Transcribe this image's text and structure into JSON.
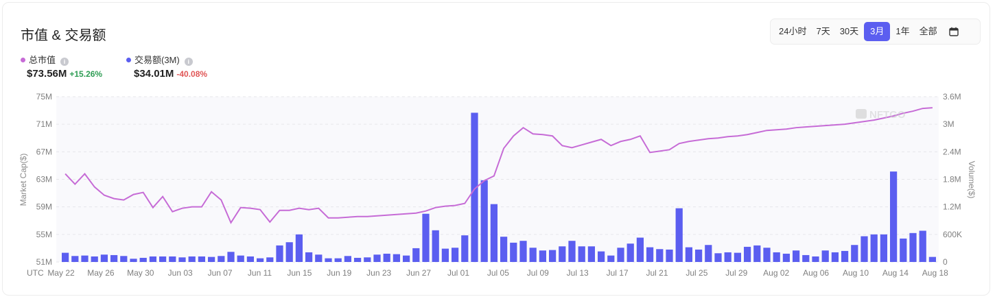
{
  "header": {
    "title": "市值 & 交易额"
  },
  "legend": {
    "market_cap": {
      "label": "总市值",
      "value": "$73.56M",
      "change": "+15.26%",
      "color": "#c66bd6"
    },
    "volume": {
      "label": "交易额(3M)",
      "value": "$34.01M",
      "change": "-40.08%",
      "color": "#5b5ef0"
    }
  },
  "range_selector": {
    "options": [
      "24小时",
      "7天",
      "30天",
      "3月",
      "1年",
      "全部"
    ],
    "active": "3月",
    "calendar_icon": "calendar-icon"
  },
  "watermark": "NFTGO",
  "chart_data": {
    "type": "bar+line",
    "x_tick_labels": [
      "UTC",
      "May 22",
      "May 26",
      "May 30",
      "Jun 03",
      "Jun 07",
      "Jun 11",
      "Jun 15",
      "Jun 19",
      "Jun 23",
      "Jun 27",
      "Jul 01",
      "Jul 05",
      "Jul 09",
      "Jul 13",
      "Jul 17",
      "Jul 21",
      "Jul 25",
      "Jul 29",
      "Aug 02",
      "Aug 06",
      "Aug 10",
      "Aug 14",
      "Aug 18"
    ],
    "y_left": {
      "label": "Market Cap($)",
      "ticks": [
        "51M",
        "55M",
        "59M",
        "63M",
        "67M",
        "71M",
        "75M"
      ],
      "min": 51,
      "max": 75
    },
    "y_right": {
      "label": "Volume($)",
      "ticks": [
        "0",
        "600K",
        "1.2M",
        "1.8M",
        "2.4M",
        "3M",
        "3.6M"
      ],
      "min": 0,
      "max": 3.6
    },
    "grid": true,
    "volume_series_M": [
      0.2,
      0.13,
      0.14,
      0.12,
      0.16,
      0.15,
      0.13,
      0.07,
      0.09,
      0.12,
      0.12,
      0.12,
      0.1,
      0.12,
      0.12,
      0.11,
      0.13,
      0.22,
      0.14,
      0.12,
      0.08,
      0.1,
      0.36,
      0.43,
      0.6,
      0.21,
      0.16,
      0.08,
      0.08,
      0.13,
      0.09,
      0.1,
      0.16,
      0.18,
      0.17,
      0.14,
      0.3,
      1.05,
      0.69,
      0.29,
      0.31,
      0.58,
      3.25,
      1.78,
      1.26,
      0.55,
      0.42,
      0.46,
      0.31,
      0.25,
      0.26,
      0.34,
      0.46,
      0.34,
      0.34,
      0.23,
      0.14,
      0.31,
      0.4,
      0.53,
      0.32,
      0.28,
      0.27,
      1.17,
      0.32,
      0.27,
      0.37,
      0.19,
      0.21,
      0.2,
      0.33,
      0.36,
      0.31,
      0.21,
      0.18,
      0.25,
      0.15,
      0.12,
      0.25,
      0.21,
      0.24,
      0.37,
      0.56,
      0.6,
      0.6,
      1.97,
      0.51,
      0.63,
      0.68,
      0.11
    ],
    "market_cap_series_M": [
      63.8,
      62.3,
      63.8,
      61.9,
      60.7,
      60.2,
      60.0,
      60.8,
      61.1,
      58.9,
      60.5,
      58.3,
      58.8,
      59.0,
      59.0,
      61.2,
      60.0,
      56.7,
      58.9,
      58.8,
      58.6,
      56.8,
      58.5,
      58.5,
      58.8,
      58.6,
      58.8,
      57.4,
      57.4,
      57.5,
      57.6,
      57.6,
      57.7,
      57.8,
      57.9,
      58.0,
      58.1,
      58.4,
      58.9,
      59.1,
      59.2,
      59.5,
      61.6,
      62.8,
      63.5,
      67.5,
      69.3,
      70.5,
      69.6,
      69.5,
      69.3,
      67.9,
      67.6,
      68.0,
      68.4,
      68.8,
      67.9,
      68.5,
      68.8,
      69.3,
      66.9,
      67.1,
      67.3,
      68.2,
      68.5,
      68.7,
      68.9,
      69.0,
      69.2,
      69.3,
      69.5,
      69.8,
      70.1,
      70.2,
      70.3,
      70.5,
      70.6,
      70.7,
      70.8,
      70.9,
      71.0,
      71.2,
      71.4,
      71.6,
      71.9,
      72.2,
      72.6,
      72.9,
      73.3,
      73.4
    ]
  }
}
